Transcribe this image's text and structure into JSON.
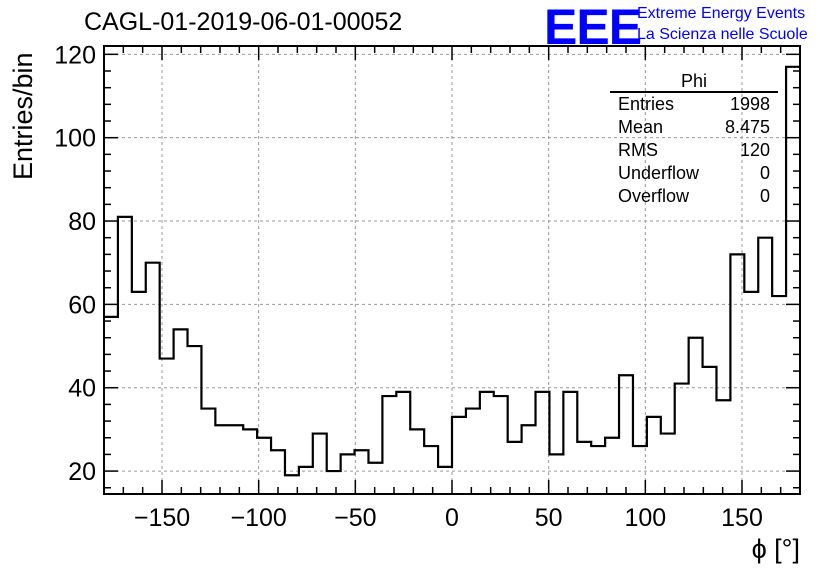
{
  "title": "CAGL-01-2019-06-01-00052",
  "logo": {
    "mark": "EEE",
    "line1": "Extreme Energy Events",
    "line2": "La Scienza nelle Scuole",
    "color": "#0000ff"
  },
  "stats": {
    "name": "Phi",
    "rows": [
      {
        "label": "Entries",
        "value": "1998"
      },
      {
        "label": "Mean",
        "value": "8.475"
      },
      {
        "label": "RMS",
        "value": "120"
      },
      {
        "label": "Underflow",
        "value": "0"
      },
      {
        "label": "Overflow",
        "value": "0"
      }
    ]
  },
  "chart_data": {
    "type": "histogram",
    "xlabel": "ϕ [°]",
    "ylabel": "Entries/bin",
    "xlim": [
      -180,
      180
    ],
    "ylim": [
      14.5,
      122
    ],
    "xticks": [
      -150,
      -100,
      -50,
      0,
      50,
      100,
      150
    ],
    "yticks": [
      20,
      40,
      60,
      80,
      100,
      120
    ],
    "grid": true,
    "bin_width": 7.2,
    "bin_edges_start": -180,
    "values": [
      57,
      81,
      63,
      70,
      47,
      54,
      50,
      35,
      31,
      31,
      30,
      28,
      25,
      19,
      21,
      29,
      20,
      24,
      25,
      22,
      38,
      39,
      30,
      26,
      21,
      33,
      35,
      39,
      38,
      27,
      31,
      39,
      24,
      39,
      27,
      26,
      28,
      43,
      26,
      33,
      29,
      41,
      52,
      45,
      37,
      72,
      63,
      76,
      62,
      117
    ],
    "line_color": "#000000"
  }
}
